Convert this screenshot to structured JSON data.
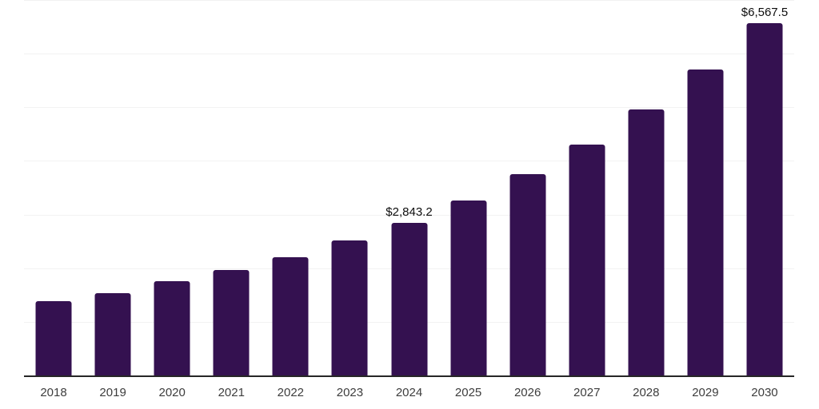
{
  "chart_data": {
    "type": "bar",
    "title": "",
    "xlabel": "",
    "ylabel": "",
    "categories": [
      "2018",
      "2019",
      "2020",
      "2021",
      "2022",
      "2023",
      "2024",
      "2025",
      "2026",
      "2027",
      "2028",
      "2029",
      "2030"
    ],
    "values": [
      1390,
      1535,
      1755,
      1965,
      2210,
      2510,
      2843.2,
      3265,
      3760,
      4310,
      4955,
      5700,
      6567.5
    ],
    "data_labels": {
      "2024": "$2,843.2",
      "2030": "$6,567.5"
    },
    "ylim": [
      0,
      7000
    ],
    "gridline_interval": 1000,
    "grid": true,
    "legend": false,
    "bar_color": "#341150",
    "axis_line_color": "#262626",
    "gridline_color": "#f2f2f2",
    "tick_label_color": "#3d3d3d",
    "data_label_color": "#0d0d0d"
  }
}
